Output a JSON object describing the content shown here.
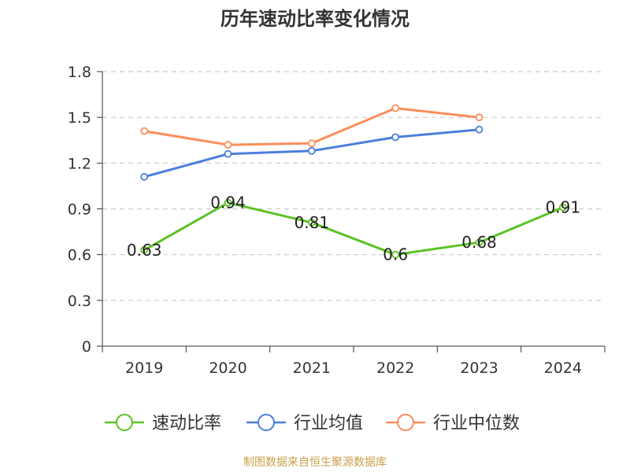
{
  "chart_data": {
    "type": "line",
    "title": "历年速动比率变化情况",
    "xlabel": "",
    "ylabel": "",
    "categories": [
      "2019",
      "2020",
      "2021",
      "2022",
      "2023",
      "2024"
    ],
    "ylim": [
      0,
      1.8
    ],
    "yticks": [
      "0",
      "0.3",
      "0.6",
      "0.9",
      "1.2",
      "1.5",
      "1.8"
    ],
    "grid": true,
    "legend_position": "bottom",
    "series": [
      {
        "name": "速动比率",
        "color": "#5bc224",
        "values": [
          0.63,
          0.94,
          0.81,
          0.6,
          0.68,
          0.91
        ],
        "data_labels": [
          "0.63",
          "0.94",
          "0.81",
          "0.6",
          "0.68",
          "0.91"
        ]
      },
      {
        "name": "行业均值",
        "color": "#4a7fdc",
        "values": [
          1.11,
          1.26,
          1.28,
          1.37,
          1.42,
          null
        ]
      },
      {
        "name": "行业中位数",
        "color": "#fc8d59",
        "values": [
          1.41,
          1.32,
          1.33,
          1.56,
          1.5,
          null
        ]
      }
    ]
  },
  "source_text": "制图数据来自恒生聚源数据库"
}
